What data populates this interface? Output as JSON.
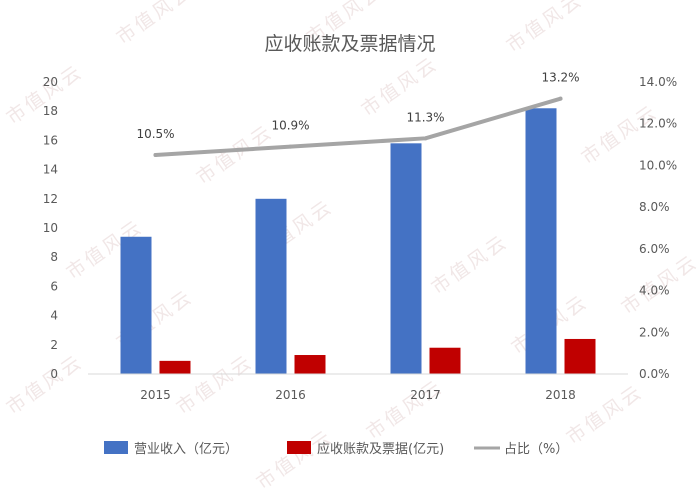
{
  "watermark": "市值风云",
  "chart_data": {
    "type": "bar",
    "title": "应收账款及票据情况",
    "categories": [
      "2015",
      "2016",
      "2017",
      "2018"
    ],
    "series": [
      {
        "name": "营业收入（亿元）",
        "type": "bar",
        "axis": "left",
        "color": "#4472c4",
        "values": [
          9.4,
          12.0,
          15.8,
          18.2
        ]
      },
      {
        "name": "应收账款及票据(亿元)",
        "type": "bar",
        "axis": "left",
        "color": "#c00000",
        "values": [
          0.9,
          1.3,
          1.8,
          2.4
        ]
      },
      {
        "name": "占比（%）",
        "type": "line",
        "axis": "right",
        "color": "#a5a5a5",
        "values": [
          10.5,
          10.9,
          11.3,
          13.2
        ]
      }
    ],
    "data_labels": [
      "10.5%",
      "10.9%",
      "11.3%",
      "13.2%"
    ],
    "y_left": {
      "min": 0,
      "max": 20,
      "step": 2,
      "ticks": [
        "0",
        "2",
        "4",
        "6",
        "8",
        "10",
        "12",
        "14",
        "16",
        "18",
        "20"
      ]
    },
    "y_right": {
      "min": 0,
      "max": 14,
      "step": 2,
      "ticks": [
        "0.0%",
        "2.0%",
        "4.0%",
        "6.0%",
        "8.0%",
        "10.0%",
        "12.0%",
        "14.0%"
      ]
    },
    "grid": false,
    "legend_position": "bottom"
  }
}
